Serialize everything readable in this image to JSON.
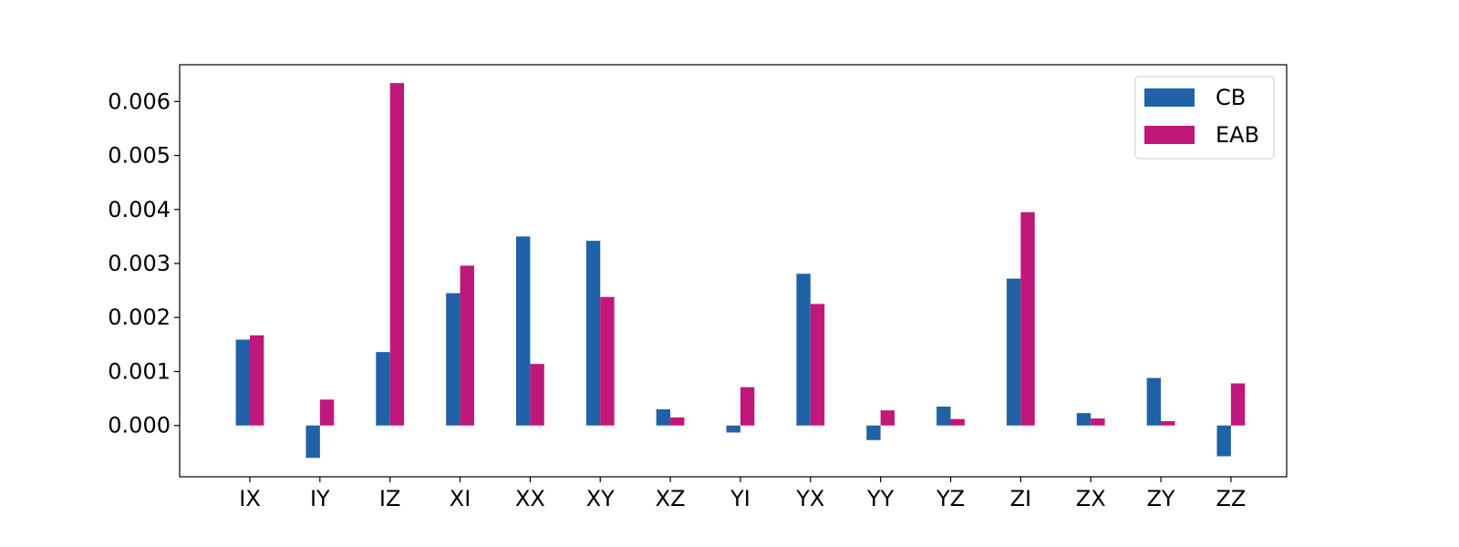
{
  "chart_data": {
    "type": "bar",
    "title": "",
    "xlabel": "",
    "ylabel": "",
    "categories": [
      "IX",
      "IY",
      "IZ",
      "XI",
      "XX",
      "XY",
      "XZ",
      "YI",
      "YX",
      "YY",
      "YZ",
      "ZI",
      "ZX",
      "ZY",
      "ZZ"
    ],
    "series": [
      {
        "name": "CB",
        "color": "#2162a6",
        "values": [
          0.00159,
          -0.0006,
          0.00136,
          0.00245,
          0.0035,
          0.00342,
          0.0003,
          -0.00013,
          0.00281,
          -0.00027,
          0.00035,
          0.00272,
          0.00023,
          0.00088,
          -0.00057
        ]
      },
      {
        "name": "EAB",
        "color": "#c0187a",
        "values": [
          0.00167,
          0.00048,
          0.00634,
          0.00296,
          0.00114,
          0.00238,
          0.00015,
          0.00071,
          0.00225,
          0.00028,
          0.00012,
          0.00395,
          0.00013,
          8e-05,
          0.00078
        ]
      }
    ],
    "ylim": [
      -0.00095,
      0.00668
    ],
    "yticks": [
      0.0,
      0.001,
      0.002,
      0.003,
      0.004,
      0.005,
      0.006
    ],
    "ytick_labels": [
      "0.000",
      "0.001",
      "0.002",
      "0.003",
      "0.004",
      "0.005",
      "0.006"
    ],
    "grid": false,
    "legend_position": "top-right"
  }
}
